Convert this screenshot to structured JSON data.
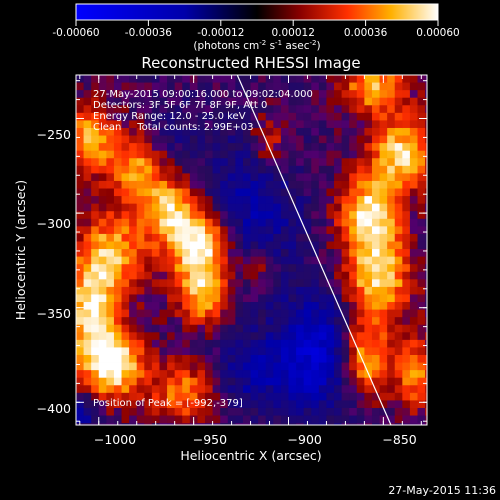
{
  "chart_data": {
    "type": "heatmap",
    "title": "Reconstructed RHESSI Image",
    "xlabel": "Heliocentric X (arcsec)",
    "ylabel": "Heliocentric Y (arcsec)",
    "xlim": [
      -1012,
      -827
    ],
    "ylim": [
      -412,
      -227
    ],
    "x_ticks": [
      -1000,
      -950,
      -900,
      -850
    ],
    "x_tick_labels": [
      "−1000",
      "−950",
      "−900",
      "−850"
    ],
    "y_ticks": [
      -250,
      -300,
      -350,
      -400
    ],
    "y_tick_labels": [
      "−250",
      "−300",
      "−350",
      "−400"
    ],
    "colorbar": {
      "range": [
        -0.0006,
        0.0006
      ],
      "tick_labels": [
        "-0.00060",
        "-0.00036",
        "-0.00012",
        "0.00012",
        "0.00036",
        "0.00060"
      ],
      "tick_values": [
        -0.0006,
        -0.00036,
        -0.00012,
        0.00012,
        0.00036,
        0.0006
      ],
      "units_parts": [
        "(photons cm",
        "-2",
        " s",
        "-1",
        " asec",
        "-2",
        ")"
      ]
    },
    "annotations": {
      "time_range": "27-May-2015 09:00:16.000 to 09:02:04.000",
      "detectors": "Detectors: 3F 5F 6F 7F 8F 9F, Att 0",
      "energy_range": "Energy Range: 12.0 - 25.0 keV",
      "clean": "Clean     Total counts: 2.99E+03",
      "peak_position": "Position of Peak = [-992,-379]"
    },
    "limb_line": {
      "x": [
        -927,
        -846
      ],
      "y": [
        -227,
        -412
      ]
    },
    "bright_sources": [
      {
        "x": -1005,
        "y": -261,
        "sx": 9,
        "sy": 13,
        "amp": 0.00042
      },
      {
        "x": -980,
        "y": -275,
        "sx": 10,
        "sy": 12,
        "amp": 0.00038
      },
      {
        "x": -963,
        "y": -298,
        "sx": 11,
        "sy": 12,
        "amp": 0.00044
      },
      {
        "x": -946,
        "y": -318,
        "sx": 12,
        "sy": 13,
        "amp": 0.0006
      },
      {
        "x": -944,
        "y": -344,
        "sx": 10,
        "sy": 11,
        "amp": 0.00043
      },
      {
        "x": -993,
        "y": -322,
        "sx": 12,
        "sy": 16,
        "amp": 0.00042
      },
      {
        "x": -1005,
        "y": -352,
        "sx": 9,
        "sy": 18,
        "amp": 0.00048
      },
      {
        "x": -992,
        "y": -379,
        "sx": 11,
        "sy": 13,
        "amp": 0.0006
      },
      {
        "x": -955,
        "y": -395,
        "sx": 12,
        "sy": 11,
        "amp": 0.00035
      },
      {
        "x": -910,
        "y": -263,
        "sx": 8,
        "sy": 12,
        "amp": 0.00025
      },
      {
        "x": -915,
        "y": -330,
        "sx": 7,
        "sy": 9,
        "amp": 0.00022
      },
      {
        "x": -855,
        "y": -233,
        "sx": 12,
        "sy": 10,
        "amp": 0.00042
      },
      {
        "x": -840,
        "y": -268,
        "sx": 12,
        "sy": 13,
        "amp": 0.00048
      },
      {
        "x": -857,
        "y": -300,
        "sx": 11,
        "sy": 14,
        "amp": 0.00052
      },
      {
        "x": -853,
        "y": -335,
        "sx": 12,
        "sy": 16,
        "amp": 0.0005
      },
      {
        "x": -860,
        "y": -378,
        "sx": 10,
        "sy": 13,
        "amp": 0.00046
      },
      {
        "x": -833,
        "y": -385,
        "sx": 7,
        "sy": 14,
        "amp": 0.00035
      }
    ],
    "dim_regions": [
      {
        "x": -920,
        "y": -300,
        "sx": 18,
        "sy": 30,
        "amp": -0.00028
      },
      {
        "x": -885,
        "y": -375,
        "sx": 15,
        "sy": 22,
        "amp": -0.00042
      },
      {
        "x": -920,
        "y": -385,
        "sx": 14,
        "sy": 14,
        "amp": -0.00022
      },
      {
        "x": -1008,
        "y": -405,
        "sx": 6,
        "sy": 6,
        "amp": -0.00025
      },
      {
        "x": -962,
        "y": -258,
        "sx": 10,
        "sy": 12,
        "amp": -0.00012
      }
    ]
  },
  "footer": {
    "timestamp": "27-May-2015 11:36"
  }
}
